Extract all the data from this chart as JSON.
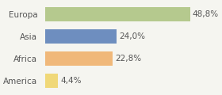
{
  "categories": [
    "America",
    "Africa",
    "Asia",
    "Europa"
  ],
  "values": [
    4.4,
    22.8,
    24.0,
    48.8
  ],
  "labels": [
    "4,4%",
    "22,8%",
    "24,0%",
    "48,8%"
  ],
  "bar_colors": [
    "#f0d878",
    "#f0b87a",
    "#6e8ebf",
    "#b5c98e"
  ],
  "background_color": "#f5f5f0",
  "xlim": [
    0,
    58
  ],
  "bar_height": 0.62,
  "label_fontsize": 7.5,
  "category_fontsize": 7.5
}
